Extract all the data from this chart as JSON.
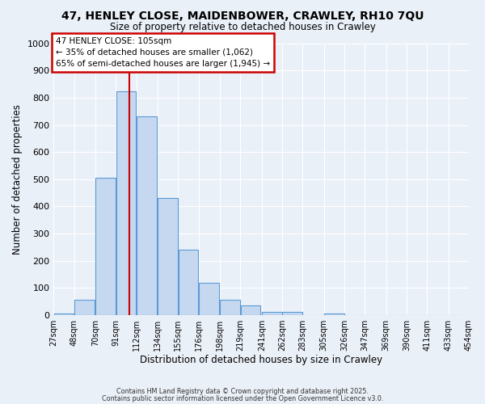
{
  "title": "47, HENLEY CLOSE, MAIDENBOWER, CRAWLEY, RH10 7QU",
  "subtitle": "Size of property relative to detached houses in Crawley",
  "xlabel": "Distribution of detached houses by size in Crawley",
  "ylabel": "Number of detached properties",
  "bar_left_edges": [
    27,
    48,
    70,
    91,
    112,
    134,
    155,
    176,
    198,
    219,
    241,
    262,
    283,
    305,
    326,
    347,
    369,
    390,
    411,
    433
  ],
  "bar_heights": [
    5,
    55,
    505,
    825,
    730,
    430,
    240,
    118,
    55,
    35,
    10,
    10,
    0,
    5,
    0,
    0,
    0,
    0,
    0,
    0
  ],
  "bin_width": 21,
  "bar_color": "#c5d8f0",
  "bar_edge_color": "#5b9bd5",
  "vline_x": 105,
  "vline_color": "#cc0000",
  "annotation_title": "47 HENLEY CLOSE: 105sqm",
  "annotation_line1": "← 35% of detached houses are smaller (1,062)",
  "annotation_line2": "65% of semi-detached houses are larger (1,945) →",
  "annotation_box_color": "#ffffff",
  "annotation_box_edge_color": "#cc0000",
  "ylim": [
    0,
    1000
  ],
  "yticks": [
    0,
    100,
    200,
    300,
    400,
    500,
    600,
    700,
    800,
    900,
    1000
  ],
  "tick_labels": [
    "27sqm",
    "48sqm",
    "70sqm",
    "91sqm",
    "112sqm",
    "134sqm",
    "155sqm",
    "176sqm",
    "198sqm",
    "219sqm",
    "241sqm",
    "262sqm",
    "283sqm",
    "305sqm",
    "326sqm",
    "347sqm",
    "369sqm",
    "390sqm",
    "411sqm",
    "433sqm",
    "454sqm"
  ],
  "bg_color": "#eaf0f8",
  "footer1": "Contains HM Land Registry data © Crown copyright and database right 2025.",
  "footer2": "Contains public sector information licensed under the Open Government Licence v3.0.",
  "grid_color": "#ffffff"
}
